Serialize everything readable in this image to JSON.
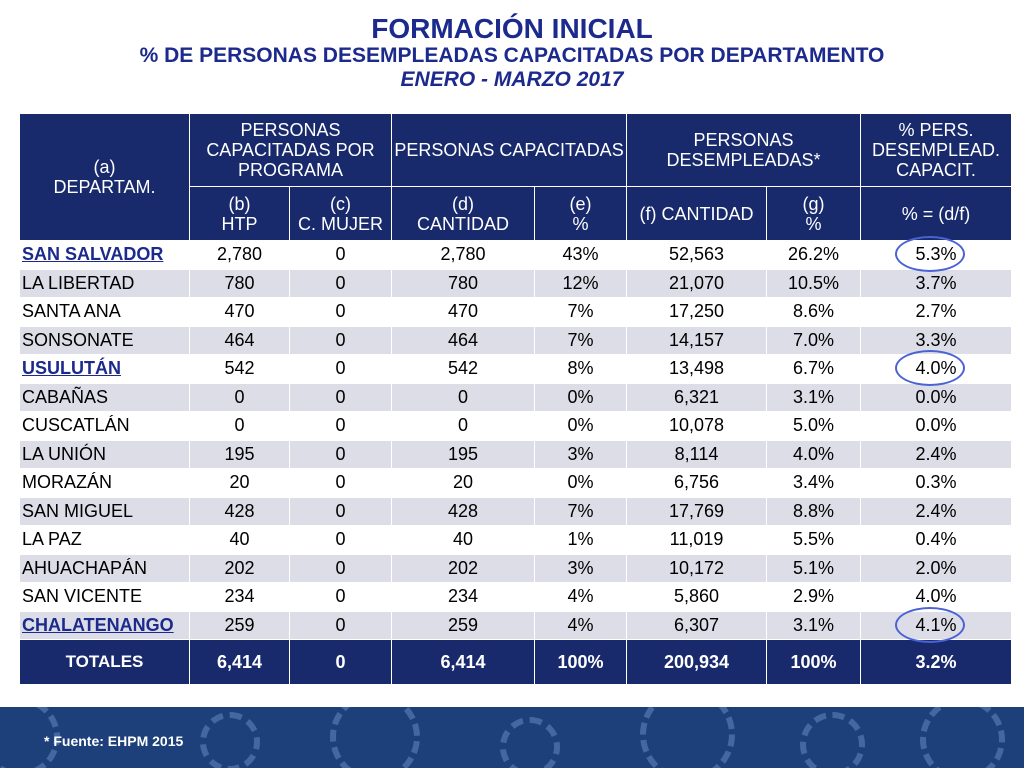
{
  "header": {
    "title": "FORMACIÓN INICIAL",
    "subtitle": "% DE PERSONAS DESEMPLEADAS CAPACITADAS POR DEPARTAMENTO",
    "period": "ENERO - MARZO 2017"
  },
  "table": {
    "group_headers": {
      "dept": "(a)\nDEPARTAM.",
      "programa": "PERSONAS CAPACITADAS POR PROGRAMA",
      "capacitadas": "PERSONAS CAPACITADAS",
      "desempleadas": "PERSONAS DESEMPLEADAS*",
      "pct": "% PERS. DESEMPLEAD. CAPACIT."
    },
    "sub_headers": {
      "b": "(b)\nHTP",
      "c": "(c)\nC. MUJER",
      "d": "(d)\nCANTIDAD",
      "e": "(e)\n%",
      "f": "(f) CANTIDAD",
      "g": "(g)\n%",
      "h": "% = (d/f)"
    },
    "rows": [
      {
        "dept": "SAN SALVADOR",
        "b": "2,780",
        "c": "0",
        "d": "2,780",
        "e": "43%",
        "f": "52,563",
        "g": "26.2%",
        "h": "5.3%"
      },
      {
        "dept": "LA LIBERTAD",
        "b": "780",
        "c": "0",
        "d": "780",
        "e": "12%",
        "f": "21,070",
        "g": "10.5%",
        "h": "3.7%"
      },
      {
        "dept": "SANTA ANA",
        "b": "470",
        "c": "0",
        "d": "470",
        "e": "7%",
        "f": "17,250",
        "g": "8.6%",
        "h": "2.7%"
      },
      {
        "dept": "SONSONATE",
        "b": "464",
        "c": "0",
        "d": "464",
        "e": "7%",
        "f": "14,157",
        "g": "7.0%",
        "h": "3.3%"
      },
      {
        "dept": "USULUTÁN",
        "b": "542",
        "c": "0",
        "d": "542",
        "e": "8%",
        "f": "13,498",
        "g": "6.7%",
        "h": "4.0%"
      },
      {
        "dept": "CABAÑAS",
        "b": "0",
        "c": "0",
        "d": "0",
        "e": "0%",
        "f": "6,321",
        "g": "3.1%",
        "h": "0.0%"
      },
      {
        "dept": "CUSCATLÁN",
        "b": "0",
        "c": "0",
        "d": "0",
        "e": "0%",
        "f": "10,078",
        "g": "5.0%",
        "h": "0.0%"
      },
      {
        "dept": "LA UNIÓN",
        "b": "195",
        "c": "0",
        "d": "195",
        "e": "3%",
        "f": "8,114",
        "g": "4.0%",
        "h": "2.4%"
      },
      {
        "dept": "MORAZÁN",
        "b": "20",
        "c": "0",
        "d": "20",
        "e": "0%",
        "f": "6,756",
        "g": "3.4%",
        "h": "0.3%"
      },
      {
        "dept": "SAN MIGUEL",
        "b": "428",
        "c": "0",
        "d": "428",
        "e": "7%",
        "f": "17,769",
        "g": "8.8%",
        "h": "2.4%"
      },
      {
        "dept": "LA PAZ",
        "b": "40",
        "c": "0",
        "d": "40",
        "e": "1%",
        "f": "11,019",
        "g": "5.5%",
        "h": "0.4%"
      },
      {
        "dept": "AHUACHAPÁN",
        "b": "202",
        "c": "0",
        "d": "202",
        "e": "3%",
        "f": "10,172",
        "g": "5.1%",
        "h": "2.0%"
      },
      {
        "dept": "SAN VICENTE",
        "b": "234",
        "c": "0",
        "d": "234",
        "e": "4%",
        "f": "5,860",
        "g": "2.9%",
        "h": "4.0%"
      },
      {
        "dept": "CHALATENANGO",
        "b": "259",
        "c": "0",
        "d": "259",
        "e": "4%",
        "f": "6,307",
        "g": "3.1%",
        "h": "4.1%"
      }
    ],
    "totals": {
      "label": "TOTALES",
      "b": "6,414",
      "c": "0",
      "d": "6,414",
      "e": "100%",
      "f": "200,934",
      "g": "100%",
      "h": "3.2%"
    }
  },
  "highlighted_depts": [
    "SAN SALVADOR",
    "USULUTÁN",
    "CHALATENANGO"
  ],
  "footer": {
    "source": "* Fuente: EHPM 2015"
  },
  "colors": {
    "header_bg": "#182a6c",
    "title": "#1b2a8c",
    "highlight_ring": "#4a62d6",
    "alt_row": "#dcdde6"
  }
}
